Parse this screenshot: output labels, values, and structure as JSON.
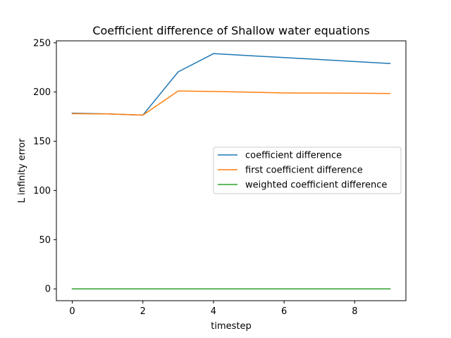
{
  "chart_data": {
    "type": "line",
    "title": "Coefficient difference of Shallow water equations",
    "xlabel": "timestep",
    "ylabel": "L infinity error",
    "xlim": [
      -0.45,
      9.45
    ],
    "ylim": [
      -12,
      252
    ],
    "xticks": [
      0,
      2,
      4,
      6,
      8
    ],
    "yticks": [
      0,
      50,
      100,
      150,
      200,
      250
    ],
    "grid": false,
    "legend_position": "center-right",
    "x": [
      0,
      1,
      2,
      3,
      4,
      5,
      6,
      7,
      8,
      9
    ],
    "series": [
      {
        "name": "coefficient difference",
        "color": "#1f77b4",
        "values": [
          178.5,
          177.8,
          176.5,
          220.5,
          239.0,
          237.0,
          235.0,
          233.0,
          231.0,
          229.0
        ]
      },
      {
        "name": "first coefficient difference",
        "color": "#ff7f0e",
        "values": [
          178.0,
          177.8,
          176.5,
          201.0,
          200.6,
          199.9,
          199.1,
          199.0,
          198.8,
          198.5
        ]
      },
      {
        "name": "weighted coefficient difference",
        "color": "#2ca02c",
        "values": [
          0,
          0,
          0,
          0,
          0,
          0,
          0,
          0,
          0,
          0
        ]
      }
    ]
  }
}
